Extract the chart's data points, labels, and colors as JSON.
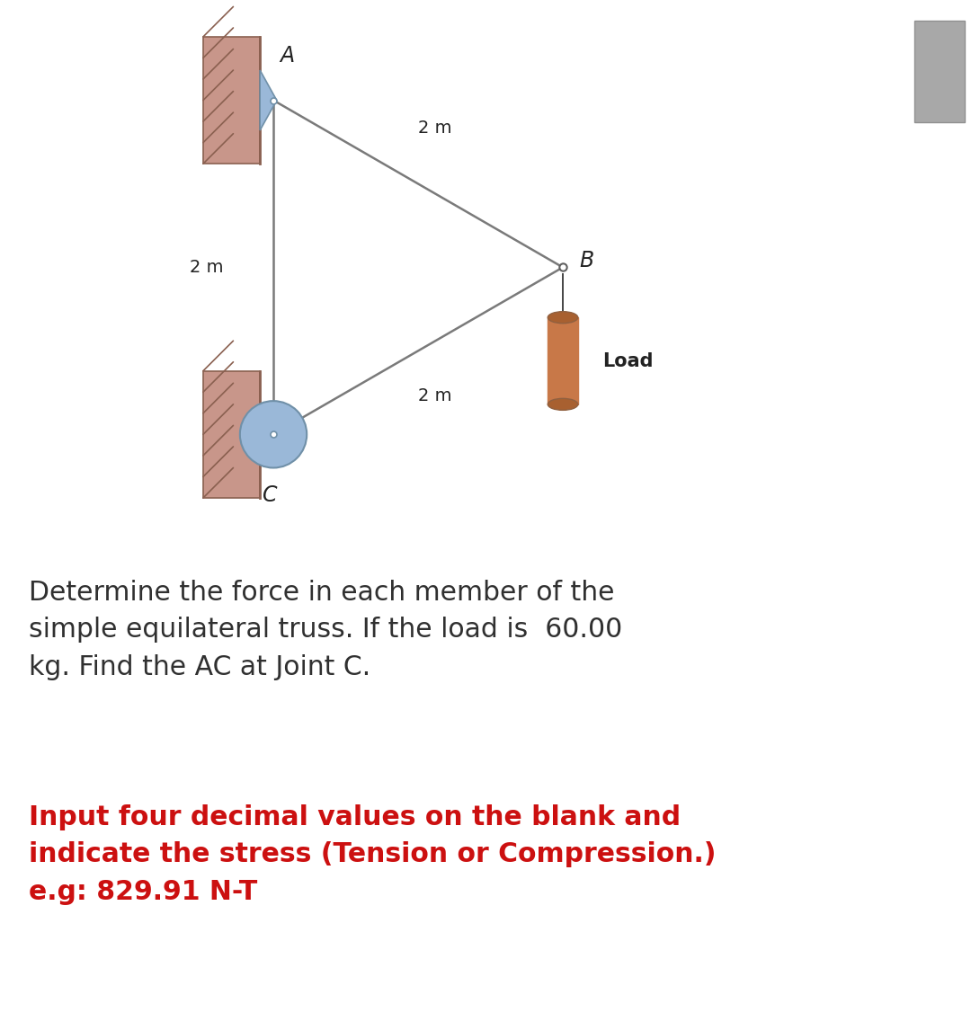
{
  "bg_color": "#ffffff",
  "wall_color": "#c8968a",
  "wall_edge_color": "#8a6050",
  "pin_color": "#9ab8d8",
  "pin_edge_color": "#7090a8",
  "member_color": "#7a7a7a",
  "load_body_color": "#c87848",
  "load_top_color": "#a86030",
  "load_edge_color": "#906040",
  "node_color": "#ffffff",
  "node_edge_color": "#606060",
  "scrollbar_color": "#c0c0c0",
  "label_A": "A",
  "label_B": "B",
  "label_C": "C",
  "dim_AB": "2 m",
  "dim_AC": "2 m",
  "dim_BC": "2 m",
  "load_label": "Load",
  "text1": "Determine the force in each member of the",
  "text2": "simple equilateral truss. If the load is  60.00",
  "text3": "kg. Find the AC at Joint C.",
  "text4": "Input four decimal values on the blank and",
  "text5": "indicate the stress (Tension or Compression.)",
  "text6": "e.g: 829.91 N-T",
  "text_color_black": "#303030",
  "text_color_red": "#cc1010",
  "fig_width": 10.8,
  "fig_height": 11.36
}
